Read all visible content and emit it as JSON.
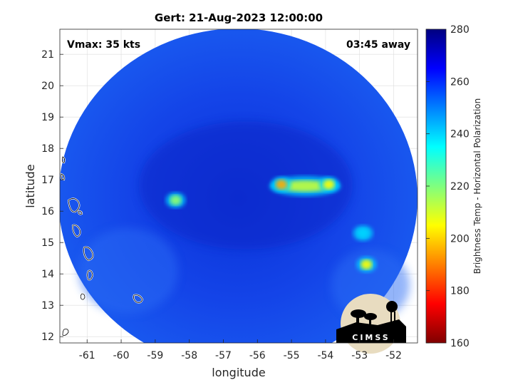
{
  "chart_data": {
    "type": "heatmap",
    "title": "Gert: 21-Aug-2023 12:00:00",
    "xlabel": "longitude",
    "ylabel": "latitude",
    "xlim": [
      -61.8,
      -51.3
    ],
    "ylim": [
      11.8,
      21.8
    ],
    "x_ticks": [
      -61,
      -60,
      -59,
      -58,
      -57,
      -56,
      -55,
      -54,
      -53,
      -52
    ],
    "y_ticks": [
      12,
      13,
      14,
      15,
      16,
      17,
      18,
      19,
      20,
      21
    ],
    "grid": true,
    "annotations": {
      "top_left": "Vmax: 35 kts",
      "top_right": "03:45 away"
    },
    "colorbar": {
      "label": "Brightness Temp - Horizontal Polarization",
      "min": 160,
      "max": 280,
      "ticks": [
        160,
        180,
        200,
        220,
        240,
        260,
        280
      ]
    },
    "features": [
      {
        "name": "convective-band",
        "lon": -54.6,
        "lat": 16.8,
        "temp": 212
      },
      {
        "name": "convective-cell",
        "lon": -55.3,
        "lat": 16.85,
        "temp": 195
      },
      {
        "name": "convective-cell",
        "lon": -53.9,
        "lat": 16.85,
        "temp": 205
      },
      {
        "name": "convective-cell",
        "lon": -58.4,
        "lat": 16.35,
        "temp": 218
      },
      {
        "name": "convective-cell",
        "lon": -52.8,
        "lat": 14.3,
        "temp": 205
      },
      {
        "name": "convective-cell",
        "lon": -52.9,
        "lat": 15.3,
        "temp": 240
      }
    ]
  },
  "logo": {
    "text": "CIMSS"
  }
}
